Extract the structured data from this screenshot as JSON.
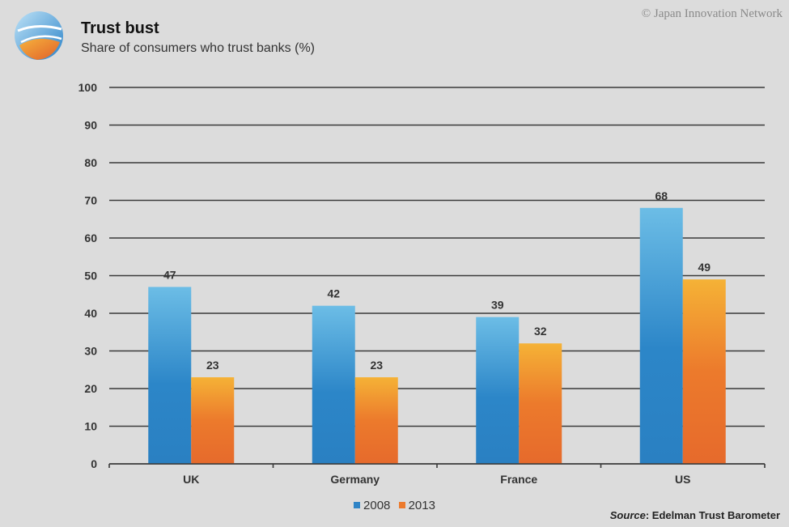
{
  "header": {
    "title": "Trust bust",
    "subtitle": "Share of consumers who trust banks (%)",
    "copyright": "© Japan Innovation Network"
  },
  "footer": {
    "source_label": "Source",
    "source_text": ": Edelman Trust Barometer"
  },
  "colors": {
    "background": "#dcdcdc",
    "series_2008": "#2f84c6",
    "series_2013": "#ec7a2c"
  },
  "chart_data": {
    "type": "bar",
    "title": "Trust bust",
    "subtitle": "Share of consumers who trust banks (%)",
    "categories": [
      "UK",
      "Germany",
      "France",
      "US"
    ],
    "series": [
      {
        "name": "2008",
        "values": [
          47,
          42,
          39,
          68
        ]
      },
      {
        "name": "2013",
        "values": [
          23,
          23,
          32,
          49
        ]
      }
    ],
    "yticks": [
      "0",
      "10",
      "20",
      "30",
      "40",
      "50",
      "60",
      "70",
      "80",
      "90",
      "100"
    ],
    "ylim": [
      0,
      100
    ],
    "grid": true,
    "legend": "bottom",
    "data_labels": true
  }
}
